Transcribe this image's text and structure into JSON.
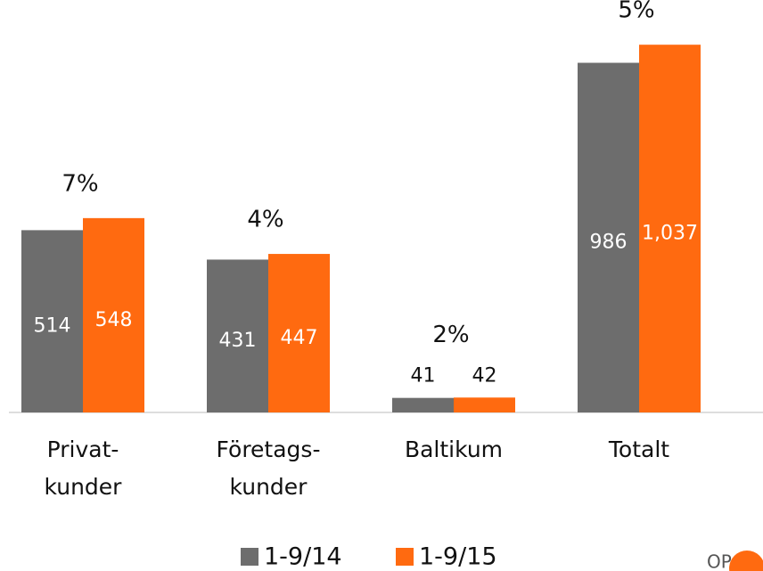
{
  "chart_data": {
    "type": "bar",
    "categories": [
      [
        "Privat-",
        "kunder"
      ],
      [
        "Företags-",
        "kunder"
      ],
      [
        "Baltikum"
      ],
      [
        "Totalt"
      ]
    ],
    "series": [
      {
        "name": "1-9/14",
        "color": "#6d6d6d",
        "values": [
          514,
          431,
          41,
          986
        ]
      },
      {
        "name": "1-9/15",
        "color": "#ff6a10",
        "values": [
          548,
          447,
          42,
          1037
        ],
        "value_labels": [
          "548",
          "447",
          "42",
          "1,037"
        ]
      }
    ],
    "annotations": [
      "7%",
      "4%",
      "2%",
      "5%"
    ],
    "ylim": [
      0,
      1040
    ],
    "grid": false,
    "legend": "bottom",
    "logo_text": "OP"
  }
}
